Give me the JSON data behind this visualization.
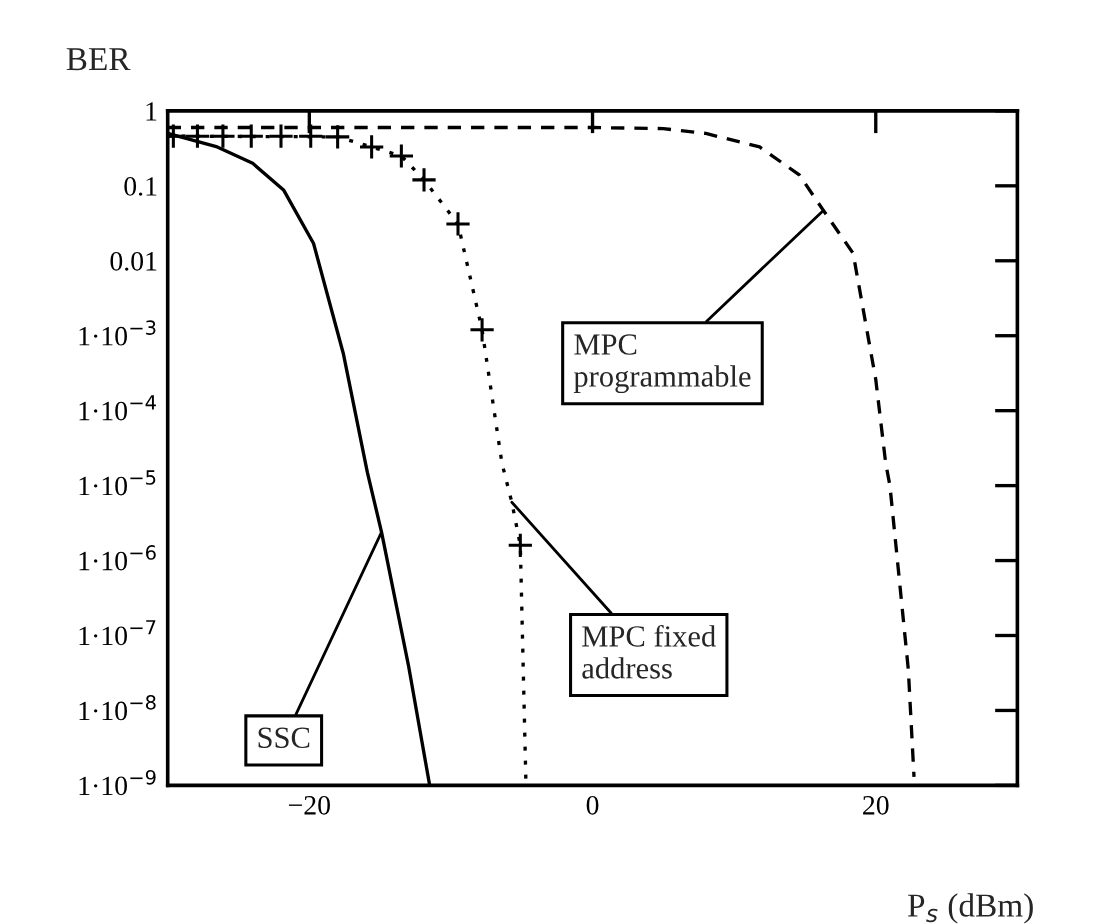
{
  "chart_data": {
    "type": "line",
    "xlabel": "P$_{s}$ (dBm)",
    "ylabel": "BER",
    "log": "y",
    "grid": false,
    "legend": false,
    "xlim": [
      -30,
      30
    ],
    "ylim": [
      1e-09,
      1
    ],
    "xticks": [
      {
        "value": -20,
        "label": "−20"
      },
      0,
      20
    ],
    "yticks": [
      {
        "value": 1e-09,
        "label": "1·10$^{−9}$"
      },
      {
        "value": 1e-08,
        "label": "1·10$^{−8}$"
      },
      {
        "value": 1e-07,
        "label": "1·10$^{−7}$"
      },
      {
        "value": 1e-06,
        "label": "1·10$^{−6}$"
      },
      {
        "value": 1e-05,
        "label": "1·10$^{−5}$"
      },
      {
        "value": 0.0001,
        "label": "1·10$^{−4}$"
      },
      {
        "value": 0.001,
        "label": "1·10$^{−3}$"
      },
      0.01,
      0.1,
      1
    ],
    "series": [
      {
        "line_style": "solid",
        "marker": "none",
        "color": "#000000",
        "x": [
          -30,
          -26.5,
          -24,
          -21.8,
          -19.7,
          -17.6,
          -15.9,
          -14.9,
          -13,
          -11.5
        ],
        "values": [
          0.5,
          0.33,
          0.2,
          0.087,
          0.017,
          0.00058,
          1.5e-05,
          2.4e-06,
          4e-08,
          1e-09
        ]
      },
      {
        "line_style": "dotted",
        "marker": "none",
        "color": "#000000",
        "x": [
          -30,
          -18,
          -15.6,
          -13.5,
          -11.9,
          -9.5,
          -7.8,
          -6.4,
          -5.7,
          -5.1,
          -4.7
        ],
        "values": [
          0.46,
          0.45,
          0.33,
          0.25,
          0.12,
          0.031,
          0.0012,
          2e-05,
          6e-06,
          1.6e-06,
          1e-09
        ]
      },
      {
        "type": "scatter",
        "marker": "cross",
        "color": "#000000",
        "x": [
          -29.6,
          -27.9,
          -26.1,
          -24.1,
          -22,
          -19.9,
          -18,
          -15.6,
          -13.5,
          -11.9,
          -9.5,
          -7.8,
          -5.1
        ],
        "values": [
          0.46,
          0.46,
          0.46,
          0.46,
          0.46,
          0.46,
          0.45,
          0.33,
          0.25,
          0.12,
          0.031,
          0.0012,
          1.6e-06
        ]
      },
      {
        "line_style": "dashed",
        "marker": "none",
        "color": "#000000",
        "x": [
          -30,
          0,
          5,
          8,
          11.8,
          14.6,
          16.3,
          18.4,
          20,
          20.7,
          21,
          22.3,
          22.7
        ],
        "values": [
          0.6,
          0.6,
          0.58,
          0.5,
          0.33,
          0.14,
          0.047,
          0.0126,
          0.00026,
          2e-05,
          1e-05,
          3.5e-08,
          1.3e-09
        ]
      }
    ],
    "annotations": [
      {
        "text": "SSC",
        "x": -14.9,
        "y": 2.4e-06
      },
      {
        "text": "MPC fixed\naddress",
        "x": -5.7,
        "y": 6e-06
      },
      {
        "text": "MPC\nprogrammable",
        "x": 16.3,
        "y": 0.047
      }
    ]
  }
}
